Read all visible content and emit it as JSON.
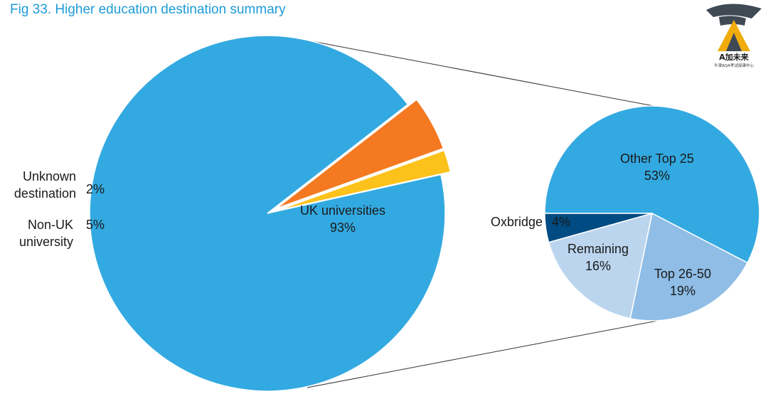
{
  "chart_data": [
    {
      "type": "pie",
      "title": "Fig 33. Higher education destination summary",
      "slices": [
        {
          "label": "UK universities",
          "value": 93,
          "value_label": "93%",
          "color": "#33a9e1",
          "exploded": false
        },
        {
          "label": "Non-UK university",
          "value": 5,
          "value_label": "5%",
          "color": "#f47920",
          "exploded": true
        },
        {
          "label": "Unknown destination",
          "value": 2,
          "value_label": "2%",
          "color": "#fcc21b",
          "exploded": true
        }
      ]
    },
    {
      "type": "pie",
      "title": "",
      "breakdown_of": "UK universities",
      "slices": [
        {
          "label": "Other Top 25",
          "value": 53,
          "value_label": "53%",
          "color": "#33a9e1"
        },
        {
          "label": "Top 26-50",
          "value": 19,
          "value_label": "19%",
          "color": "#8fbde6"
        },
        {
          "label": "Remaining",
          "value": 16,
          "value_label": "16%",
          "color": "#bcd5ef"
        },
        {
          "label": "Oxbridge",
          "value": 4,
          "value_label": "4%",
          "color": "#004b82"
        }
      ]
    }
  ],
  "logo": {
    "brand": "A加未来",
    "subtitle": "牛津AQA考试授课中心",
    "colors": {
      "cap": "#3f4a55",
      "mark": "#f0ac0b"
    }
  }
}
